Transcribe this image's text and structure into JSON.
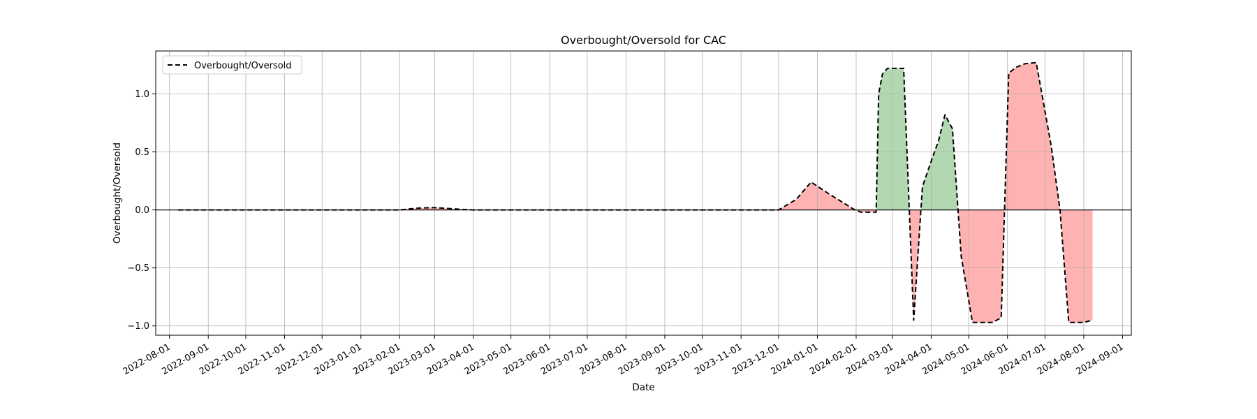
{
  "chart_data": {
    "type": "area",
    "title": "Overbought/Oversold for CAC",
    "xlabel": "Date",
    "ylabel": "Overbought/Oversold",
    "x_ticks": [
      "2022-08-01",
      "2022-09-01",
      "2022-10-01",
      "2022-11-01",
      "2022-12-01",
      "2023-01-01",
      "2023-02-01",
      "2023-03-01",
      "2023-04-01",
      "2023-05-01",
      "2023-06-01",
      "2023-07-01",
      "2023-08-01",
      "2023-09-01",
      "2023-10-01",
      "2023-11-01",
      "2023-12-01",
      "2024-01-01",
      "2024-02-01",
      "2024-03-01",
      "2024-04-01",
      "2024-05-01",
      "2024-06-01",
      "2024-07-01",
      "2024-08-01",
      "2024-09-01"
    ],
    "y_ticks": [
      {
        "value": 1.0,
        "label": "1.0"
      },
      {
        "value": 0.5,
        "label": "0.5"
      },
      {
        "value": 0.0,
        "label": "0.0"
      },
      {
        "value": -0.5,
        "label": "−0.5"
      },
      {
        "value": -1.0,
        "label": "−1.0"
      }
    ],
    "xlim": [
      "2022-07-21",
      "2024-09-08"
    ],
    "ylim": [
      -1.08,
      1.37
    ],
    "grid": true,
    "legend_position": "top-left",
    "baseline": 0,
    "colors": {
      "line": "#000000",
      "positive_fill": "#b2d8b2",
      "negative_fill": "#ffb2b2",
      "grid": "#b0b0b0",
      "baseline": "#000000"
    },
    "series": [
      {
        "name": "Overbought/Oversold",
        "style": "dashed",
        "points": [
          [
            "2022-08-08",
            0.0
          ],
          [
            "2022-12-01",
            0.0
          ],
          [
            "2023-02-01",
            0.0
          ],
          [
            "2023-02-15",
            0.015
          ],
          [
            "2023-02-28",
            0.02
          ],
          [
            "2023-03-08",
            0.015
          ],
          [
            "2023-03-22",
            0.005
          ],
          [
            "2023-04-01",
            0.0
          ],
          [
            "2023-12-01",
            0.0
          ],
          [
            "2023-12-15",
            0.09
          ],
          [
            "2023-12-27",
            0.24
          ],
          [
            "2024-01-10",
            0.14
          ],
          [
            "2024-01-25",
            0.04
          ],
          [
            "2024-01-31",
            0.0
          ],
          [
            "2024-02-05",
            -0.02
          ],
          [
            "2024-02-12",
            -0.02
          ],
          [
            "2024-02-17",
            -0.02
          ],
          [
            "2024-02-19",
            1.0
          ],
          [
            "2024-02-22",
            1.17
          ],
          [
            "2024-02-26",
            1.22
          ],
          [
            "2024-03-06",
            1.22
          ],
          [
            "2024-03-10",
            1.22
          ],
          [
            "2024-03-18",
            -0.95
          ],
          [
            "2024-03-25",
            0.2
          ],
          [
            "2024-04-01",
            0.42
          ],
          [
            "2024-04-07",
            0.6
          ],
          [
            "2024-04-12",
            0.82
          ],
          [
            "2024-04-18",
            0.7
          ],
          [
            "2024-04-25",
            -0.4
          ],
          [
            "2024-05-04",
            -0.97
          ],
          [
            "2024-05-20",
            -0.97
          ],
          [
            "2024-05-27",
            -0.93
          ],
          [
            "2024-06-02",
            1.18
          ],
          [
            "2024-06-08",
            1.23
          ],
          [
            "2024-06-15",
            1.26
          ],
          [
            "2024-06-24",
            1.27
          ],
          [
            "2024-07-06",
            0.55
          ],
          [
            "2024-07-13",
            0.0
          ],
          [
            "2024-07-20",
            -0.97
          ],
          [
            "2024-08-01",
            -0.97
          ],
          [
            "2024-08-08",
            -0.95
          ]
        ]
      }
    ]
  }
}
